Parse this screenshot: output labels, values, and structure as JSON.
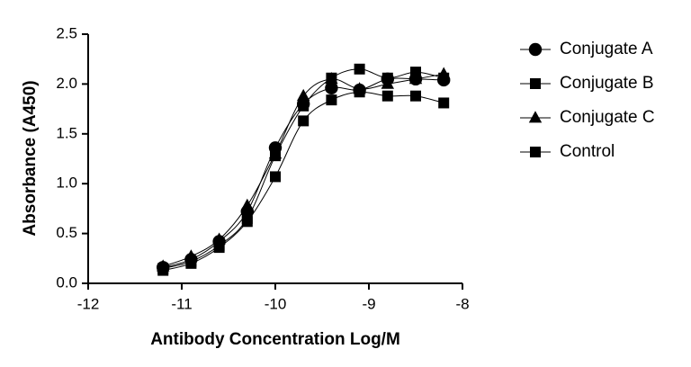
{
  "chart_data": {
    "type": "scatter",
    "xlabel": "Antibody Concentration Log/M",
    "ylabel": "Absorbance (A450)",
    "x": [
      -11.2,
      -10.9,
      -10.6,
      -10.3,
      -10.0,
      -9.7,
      -9.4,
      -9.1,
      -8.8,
      -8.5,
      -8.2
    ],
    "series": [
      {
        "name": "Conjugate A",
        "color": "#000000",
        "marker": "circle",
        "values": [
          0.16,
          0.24,
          0.42,
          0.72,
          1.36,
          1.8,
          1.96,
          1.94,
          2.05,
          2.05,
          2.04
        ]
      },
      {
        "name": "Conjugate B",
        "color": "#000000",
        "marker": "square",
        "values": [
          0.15,
          0.22,
          0.38,
          0.65,
          1.28,
          1.78,
          2.06,
          2.15,
          2.06,
          2.12,
          2.06
        ]
      },
      {
        "name": "Conjugate C",
        "color": "#000000",
        "marker": "triangle",
        "values": [
          0.17,
          0.27,
          0.44,
          0.78,
          1.3,
          1.88,
          2.05,
          1.95,
          2.0,
          2.05,
          2.1
        ]
      },
      {
        "name": "Control",
        "color": "#000000",
        "marker": "square",
        "values": [
          0.13,
          0.2,
          0.36,
          0.62,
          1.07,
          1.63,
          1.84,
          1.92,
          1.88,
          1.88,
          1.81
        ]
      }
    ],
    "xlim": [
      -12,
      -8
    ],
    "xticks": [
      -12,
      -11,
      -10,
      -9,
      -8
    ],
    "ylim": [
      0,
      2.5
    ],
    "yticks": [
      {
        "value": 0,
        "label": "0.0"
      },
      0.5,
      {
        "value": 1,
        "label": "1.0"
      },
      1.5,
      {
        "value": 2,
        "label": "2.0"
      },
      2.5
    ],
    "legend": "right"
  }
}
